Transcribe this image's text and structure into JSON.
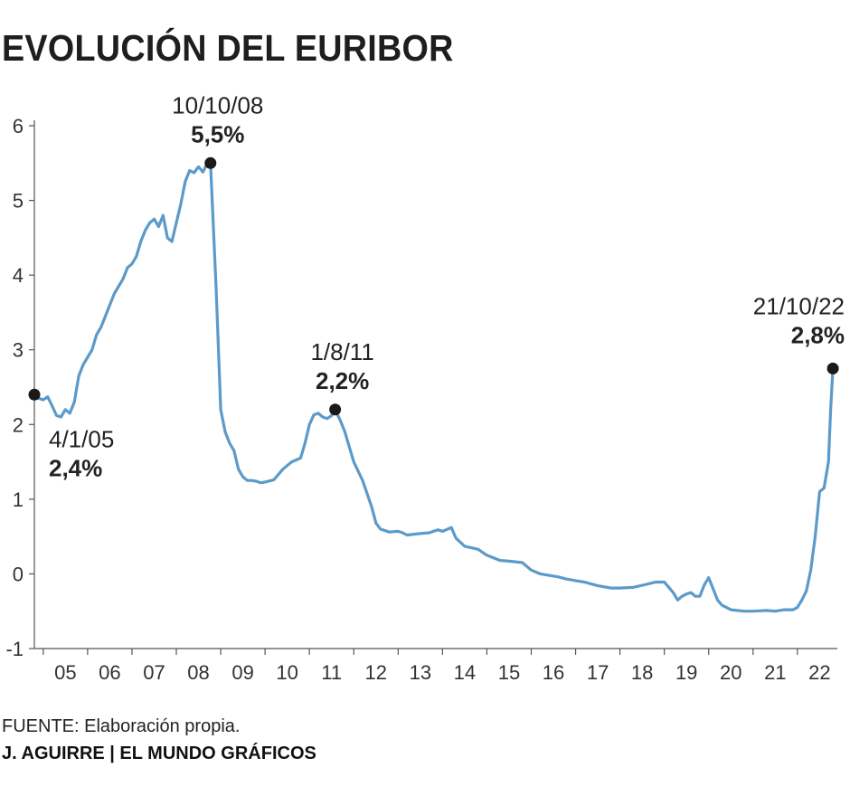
{
  "title": "EVOLUCIÓN DEL EURIBOR",
  "source": "FUENTE: Elaboración propia.",
  "credit": "J. AGUIRRE | EL MUNDO GRÁFICOS",
  "colors": {
    "line": "#5b9ac9",
    "marker": "#1a1a1a",
    "axis": "#555555"
  },
  "chart_data": {
    "type": "line",
    "title": "EVOLUCIÓN DEL EURIBOR",
    "xlabel": "",
    "ylabel": "",
    "ylim": [
      -1,
      6
    ],
    "xlim": [
      2004.8,
      2022.9
    ],
    "y_ticks": [
      -1,
      0,
      1,
      2,
      3,
      4,
      5,
      6
    ],
    "y_tick_labels": [
      "-1",
      "0",
      "1",
      "2",
      "3",
      "4",
      "5",
      "6"
    ],
    "x_tick_labels": [
      "05",
      "06",
      "07",
      "08",
      "09",
      "10",
      "11",
      "12",
      "13",
      "14",
      "15",
      "16",
      "17",
      "18",
      "19",
      "20",
      "21",
      "22"
    ],
    "grid": false,
    "legend": "none",
    "series": [
      {
        "x": [
          2004.8,
          2004.9,
          2005.0,
          2005.1,
          2005.2,
          2005.3,
          2005.4,
          2005.5,
          2005.6,
          2005.7,
          2005.8,
          2005.9,
          2006.0,
          2006.1,
          2006.2,
          2006.3,
          2006.4,
          2006.5,
          2006.6,
          2006.7,
          2006.8,
          2006.9,
          2007.0,
          2007.1,
          2007.2,
          2007.3,
          2007.4,
          2007.5,
          2007.6,
          2007.7,
          2007.8,
          2007.9,
          2008.0,
          2008.1,
          2008.2,
          2008.3,
          2008.4,
          2008.5,
          2008.6,
          2008.7,
          2008.77,
          2008.9,
          2009.0,
          2009.1,
          2009.2,
          2009.3,
          2009.4,
          2009.5,
          2009.6,
          2009.7,
          2009.8,
          2009.9,
          2010.0,
          2010.2,
          2010.4,
          2010.5,
          2010.6,
          2010.8,
          2010.9,
          2011.0,
          2011.1,
          2011.2,
          2011.3,
          2011.4,
          2011.5,
          2011.58,
          2011.7,
          2011.8,
          2011.9,
          2012.0,
          2012.2,
          2012.4,
          2012.5,
          2012.6,
          2012.8,
          2013.0,
          2013.1,
          2013.2,
          2013.5,
          2013.7,
          2013.9,
          2014.0,
          2014.2,
          2014.3,
          2014.5,
          2014.8,
          2015.0,
          2015.3,
          2015.5,
          2015.8,
          2016.0,
          2016.2,
          2016.4,
          2016.6,
          2016.8,
          2017.0,
          2017.2,
          2017.5,
          2017.8,
          2018.0,
          2018.3,
          2018.6,
          2018.8,
          2019.0,
          2019.1,
          2019.2,
          2019.3,
          2019.4,
          2019.5,
          2019.6,
          2019.7,
          2019.8,
          2019.9,
          2020.0,
          2020.1,
          2020.2,
          2020.3,
          2020.5,
          2020.8,
          2021.0,
          2021.3,
          2021.5,
          2021.7,
          2021.9,
          2022.0,
          2022.1,
          2022.2,
          2022.3,
          2022.4,
          2022.5,
          2022.6,
          2022.7,
          2022.75,
          2022.8
        ],
        "values": [
          2.4,
          2.35,
          2.33,
          2.37,
          2.25,
          2.12,
          2.1,
          2.2,
          2.15,
          2.3,
          2.65,
          2.8,
          2.9,
          3.0,
          3.2,
          3.3,
          3.45,
          3.6,
          3.75,
          3.85,
          3.95,
          4.1,
          4.15,
          4.25,
          4.45,
          4.6,
          4.7,
          4.75,
          4.65,
          4.8,
          4.5,
          4.45,
          4.7,
          4.95,
          5.25,
          5.4,
          5.37,
          5.45,
          5.38,
          5.5,
          5.5,
          3.8,
          2.2,
          1.9,
          1.75,
          1.65,
          1.4,
          1.3,
          1.25,
          1.25,
          1.24,
          1.22,
          1.23,
          1.26,
          1.4,
          1.45,
          1.5,
          1.55,
          1.75,
          2.0,
          2.13,
          2.15,
          2.1,
          2.08,
          2.12,
          2.2,
          2.05,
          1.9,
          1.7,
          1.5,
          1.25,
          0.9,
          0.68,
          0.6,
          0.56,
          0.57,
          0.55,
          0.52,
          0.54,
          0.55,
          0.59,
          0.57,
          0.62,
          0.48,
          0.37,
          0.33,
          0.25,
          0.18,
          0.17,
          0.15,
          0.05,
          0.0,
          -0.02,
          -0.04,
          -0.07,
          -0.09,
          -0.11,
          -0.16,
          -0.19,
          -0.19,
          -0.18,
          -0.14,
          -0.11,
          -0.11,
          -0.18,
          -0.25,
          -0.35,
          -0.3,
          -0.27,
          -0.25,
          -0.3,
          -0.3,
          -0.15,
          -0.05,
          -0.2,
          -0.35,
          -0.42,
          -0.48,
          -0.5,
          -0.5,
          -0.49,
          -0.5,
          -0.48,
          -0.48,
          -0.45,
          -0.35,
          -0.23,
          0.05,
          0.5,
          1.1,
          1.15,
          1.5,
          2.2,
          2.75
        ]
      }
    ],
    "annotations": [
      {
        "date": "4/1/05",
        "value": "2,4%",
        "x": 2004.8,
        "y": 2.4
      },
      {
        "date": "10/10/08",
        "value": "5,5%",
        "x": 2008.77,
        "y": 5.5
      },
      {
        "date": "1/8/11",
        "value": "2,2%",
        "x": 2011.58,
        "y": 2.2
      },
      {
        "date": "21/10/22",
        "value": "2,8%",
        "x": 2022.8,
        "y": 2.75
      }
    ]
  }
}
